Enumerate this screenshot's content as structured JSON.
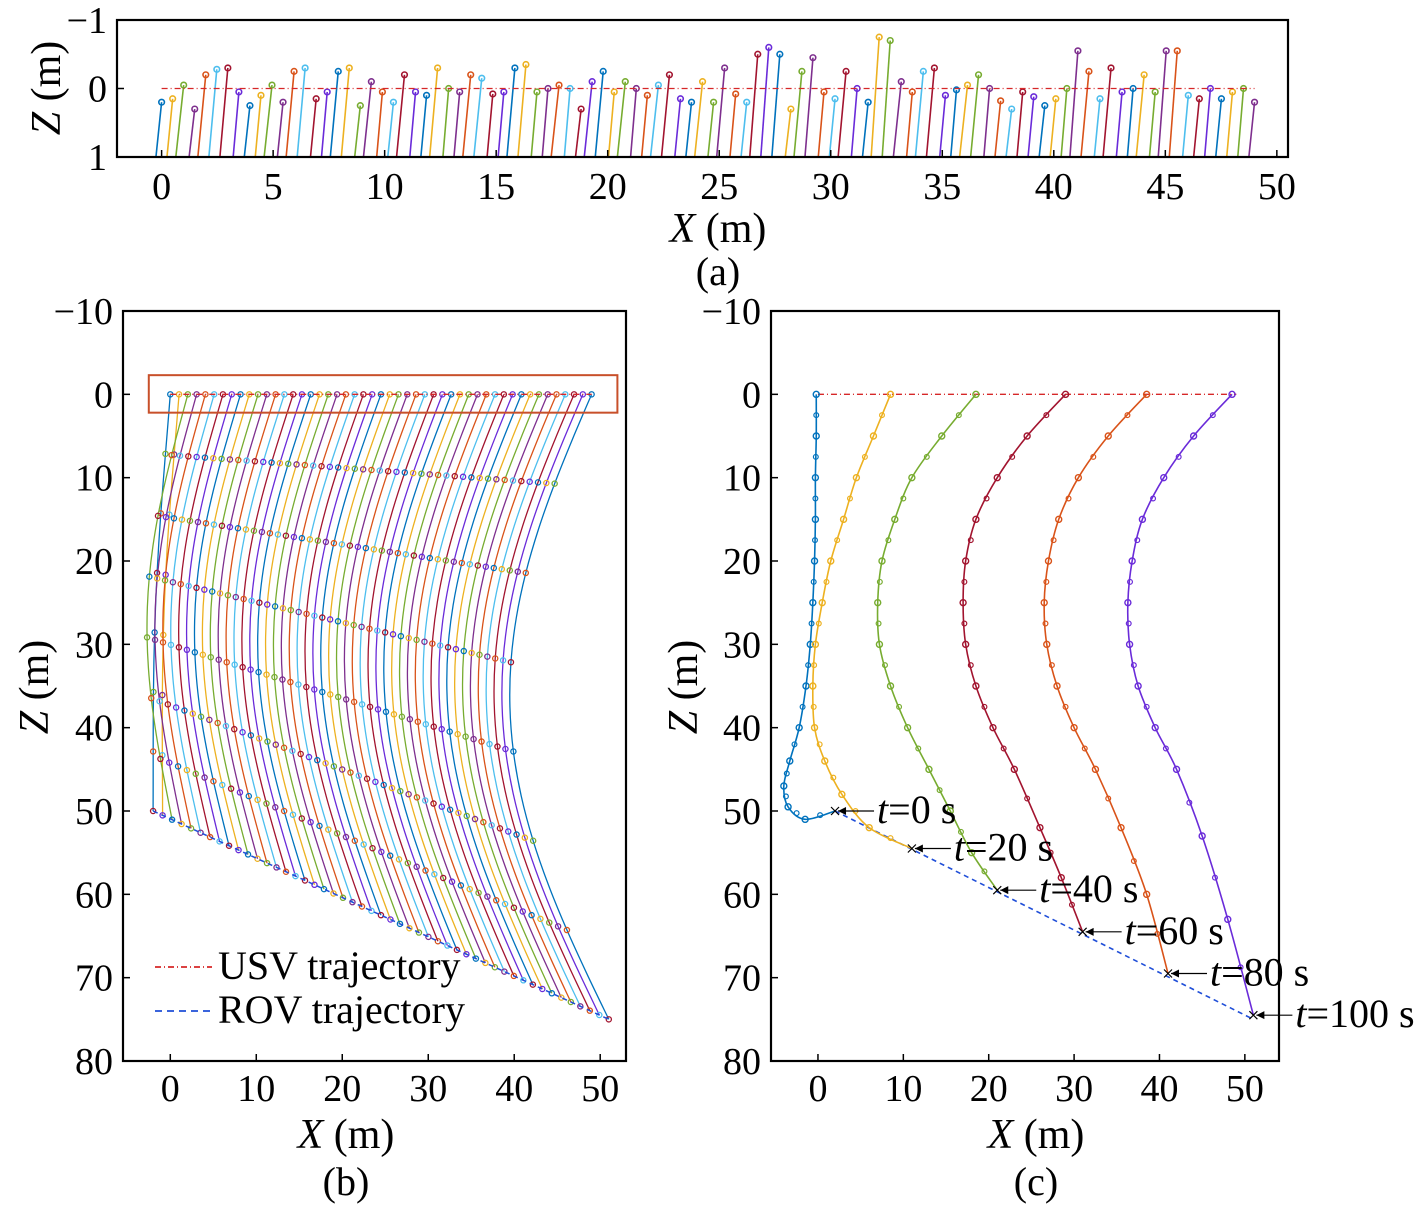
{
  "chart_data": [
    {
      "panel": "(a)",
      "type": "line",
      "xlabel_italic": "X",
      "xlabel_unit": "(m)",
      "ylabel_italic": "Z",
      "ylabel_unit": "(m)",
      "xlim": [
        -2,
        50.5
      ],
      "ylim": [
        -1,
        1
      ],
      "y_inverted": true,
      "xticks": [
        0,
        5,
        10,
        15,
        20,
        25,
        30,
        35,
        40,
        45,
        50
      ],
      "xtick_labels": [
        "0",
        "5",
        "10",
        "15",
        "20",
        "25",
        "30",
        "35",
        "40",
        "45",
        "50"
      ],
      "yticks": [
        -1,
        0,
        1
      ],
      "ytick_labels": [
        "−1",
        "0",
        "1"
      ],
      "usv_z": 0,
      "segment_top_z": [
        0.2,
        0.15,
        -0.05,
        0.3,
        -0.2,
        -0.28,
        -0.3,
        0.05,
        0.25,
        0.1,
        -0.05,
        0.2,
        -0.25,
        -0.3,
        0.15,
        0.05,
        -0.25,
        -0.3,
        0.25,
        -0.1,
        0.05,
        0.2,
        -0.2,
        0.05,
        0.1,
        -0.3,
        0.0,
        0.05,
        -0.2,
        -0.15,
        0.08,
        0.05,
        -0.3,
        -0.35,
        0.05,
        0.0,
        -0.05,
        0.0,
        0.3,
        -0.1,
        -0.25,
        0.05,
        -0.1,
        0.0,
        0.1,
        -0.05,
        -0.2,
        0.15,
        0.2,
        -0.1,
        0.2,
        -0.3,
        0.08,
        0.2,
        -0.5,
        -0.6,
        -0.5,
        0.3,
        -0.25,
        -0.45,
        0.05,
        0.15,
        -0.25,
        0.0,
        0.2,
        -0.75,
        -0.7,
        -0.1,
        0.05,
        -0.25,
        -0.3,
        0.1,
        0.02,
        -0.05,
        -0.2,
        0.0,
        0.18,
        0.3,
        0.05,
        0.12,
        0.25,
        0.15,
        0.0,
        -0.55,
        -0.25,
        0.15,
        -0.3,
        0.05,
        0.0,
        -0.2,
        0.05,
        -0.55,
        -0.55,
        0.1,
        0.15,
        0.0,
        0.15,
        0.05,
        0.0,
        0.2
      ],
      "series_colors": [
        "#0072bd",
        "#edb120",
        "#77ac30",
        "#7e2f8e",
        "#d95319",
        "#4dbeee",
        "#a2142f",
        "#6a2bd9"
      ]
    },
    {
      "panel": "(b)",
      "type": "line",
      "xlabel_italic": "X",
      "xlabel_unit": "(m)",
      "ylabel_italic": "Z",
      "ylabel_unit": "(m)",
      "xlim": [
        -5.5,
        53
      ],
      "ylim": [
        -10,
        80
      ],
      "y_inverted": true,
      "xticks": [
        0,
        10,
        20,
        30,
        40,
        50
      ],
      "xtick_labels": [
        "0",
        "10",
        "20",
        "30",
        "40",
        "50"
      ],
      "yticks": [
        -10,
        0,
        10,
        20,
        30,
        40,
        50,
        60,
        70,
        80
      ],
      "ytick_labels": [
        "−10",
        "0",
        "10",
        "20",
        "30",
        "40",
        "50",
        "60",
        "70",
        "80"
      ],
      "highlight_box": {
        "x": [
          -2.5,
          52
        ],
        "z": [
          -2.3,
          2.2
        ]
      },
      "legend": [
        {
          "label": "USV trajectory",
          "color": "#d62728",
          "style": "dashdot"
        },
        {
          "label": "ROV trajectory",
          "color": "#1f4ed8",
          "style": "dashed"
        }
      ],
      "cable_count": 49,
      "series_colors": [
        "#0072bd",
        "#edb120",
        "#77ac30",
        "#7e2f8e",
        "#d95319",
        "#4dbeee",
        "#a2142f",
        "#6a2bd9"
      ],
      "rov_trajectory": {
        "x": [
          -2,
          51
        ],
        "z": [
          50,
          75
        ]
      },
      "usv_trajectory": {
        "x": [
          0,
          49
        ],
        "z": [
          0,
          0
        ]
      }
    },
    {
      "panel": "(c)",
      "type": "line",
      "xlabel_italic": "X",
      "xlabel_unit": "(m)",
      "ylabel_italic": "Z",
      "ylabel_unit": "(m)",
      "xlim": [
        -5.5,
        54
      ],
      "ylim": [
        -10,
        80
      ],
      "y_inverted": true,
      "xticks": [
        0,
        10,
        20,
        30,
        40,
        50
      ],
      "xtick_labels": [
        "0",
        "10",
        "20",
        "30",
        "40",
        "50"
      ],
      "yticks": [
        -10,
        0,
        10,
        20,
        30,
        40,
        50,
        60,
        70,
        80
      ],
      "ytick_labels": [
        "−10",
        "0",
        "10",
        "20",
        "30",
        "40",
        "50",
        "60",
        "70",
        "80"
      ],
      "usv_trajectory": {
        "x": [
          0,
          49
        ],
        "z": [
          0,
          0
        ],
        "color": "#d62728"
      },
      "rov_trajectory": {
        "x": [
          2,
          51
        ],
        "z": [
          50,
          75
        ],
        "color": "#1f4ed8"
      },
      "series": [
        {
          "t": "0 s",
          "color": "#0072bd",
          "x": [
            -0.2,
            -0.2,
            -0.3,
            -0.3,
            -0.4,
            -0.6,
            -0.9,
            -1.4,
            -2.2,
            -3.3,
            -4.0,
            -3.5,
            -1.5,
            2.0
          ],
          "z": [
            0,
            5,
            10,
            15,
            20,
            25,
            30,
            35,
            40,
            44,
            47,
            49.5,
            51,
            50
          ]
        },
        {
          "t": "20 s",
          "color": "#edb120",
          "x": [
            8.5,
            6.5,
            4.5,
            3.0,
            1.5,
            0.5,
            -0.3,
            -0.6,
            -0.4,
            0.8,
            2.8,
            6.0,
            11.0
          ],
          "z": [
            0,
            5,
            10,
            15,
            20,
            25,
            30,
            35,
            40,
            44,
            48,
            52,
            54.5
          ]
        },
        {
          "t": "40 s",
          "color": "#77ac30",
          "x": [
            18.5,
            14.5,
            11.0,
            9.0,
            7.5,
            7.0,
            7.2,
            8.5,
            10.5,
            13.0,
            15.5,
            18.0,
            21.0
          ],
          "z": [
            0,
            5,
            10,
            15,
            20,
            25,
            30,
            35,
            40,
            45,
            50,
            55,
            59.5
          ]
        },
        {
          "t": "60 s",
          "color": "#a2142f",
          "x": [
            29.0,
            24.5,
            21.0,
            18.5,
            17.3,
            17.0,
            17.3,
            18.5,
            20.5,
            23.0,
            26.0,
            28.5,
            31.0
          ],
          "z": [
            0,
            5,
            10,
            15,
            20,
            25,
            30,
            35,
            40,
            45,
            52,
            58,
            64.5
          ]
        },
        {
          "t": "80 s",
          "color": "#d95319",
          "x": [
            38.5,
            34.0,
            30.5,
            28.2,
            27.0,
            26.5,
            26.8,
            28.0,
            30.0,
            32.5,
            35.5,
            38.5,
            41.0
          ],
          "z": [
            0,
            5,
            10,
            15,
            20,
            25,
            30,
            35,
            40,
            45,
            52,
            60,
            69.5
          ]
        },
        {
          "t": "100 s",
          "color": "#6a2bd9",
          "x": [
            48.5,
            44.0,
            40.5,
            38.0,
            36.8,
            36.3,
            36.5,
            37.5,
            39.5,
            42.0,
            45.0,
            48.0,
            51.0
          ],
          "z": [
            0,
            5,
            10,
            15,
            20,
            25,
            30,
            35,
            40,
            45,
            53,
            63,
            74.5
          ]
        }
      ],
      "annotations": [
        {
          "italic": "t",
          "text": "=0 s",
          "x": 2.0,
          "z": 50
        },
        {
          "italic": "t",
          "text": "=20 s",
          "x": 11.0,
          "z": 54.5
        },
        {
          "italic": "t",
          "text": "=40 s",
          "x": 21.0,
          "z": 59.5
        },
        {
          "italic": "t",
          "text": "=60 s",
          "x": 31.0,
          "z": 64.5
        },
        {
          "italic": "t",
          "text": "=80 s",
          "x": 41.0,
          "z": 69.5
        },
        {
          "italic": "t",
          "text": "=100 s",
          "x": 51.0,
          "z": 74.5
        }
      ]
    }
  ]
}
